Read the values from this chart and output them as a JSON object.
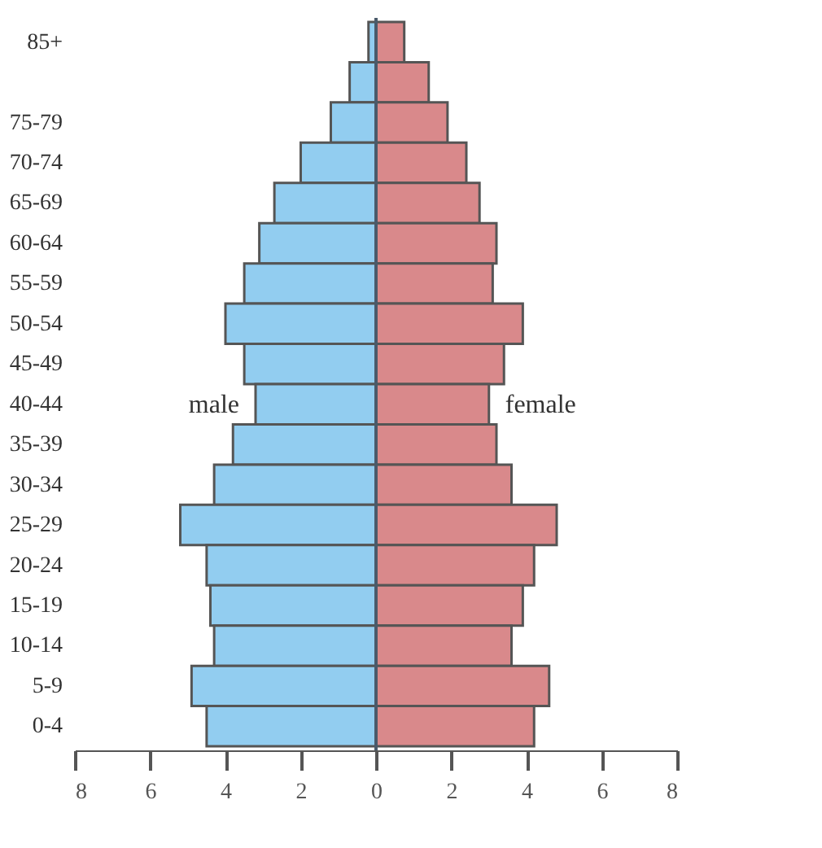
{
  "chart_data": {
    "type": "bar",
    "orientation": "horizontal",
    "categories": [
      "85+",
      null,
      "75-79",
      "70-74",
      "65-69",
      "60-64",
      "55-59",
      "50-54",
      "45-49",
      "40-44",
      "35-39",
      "30-34",
      "25-29",
      "20-24",
      "15-19",
      "10-14",
      "5-9",
      "0-4"
    ],
    "series": [
      {
        "name": "male",
        "color": "#92cdf0",
        "values": [
          -0.2,
          -0.7,
          -1.2,
          -2.0,
          -2.7,
          -3.1,
          -3.5,
          -4.0,
          -3.5,
          -3.2,
          -3.8,
          -4.3,
          -5.2,
          -4.5,
          -4.4,
          -4.3,
          -4.9,
          -4.5
        ]
      },
      {
        "name": "female",
        "color": "#d9898b",
        "values": [
          0.75,
          1.4,
          1.9,
          2.4,
          2.75,
          3.2,
          3.1,
          3.9,
          3.4,
          3.0,
          3.2,
          3.6,
          4.8,
          4.2,
          3.9,
          3.6,
          4.6,
          4.2
        ]
      }
    ],
    "xlim": [
      -8,
      8
    ],
    "xticks": [
      {
        "value": -8,
        "label": "8"
      },
      {
        "value": -6,
        "label": "6"
      },
      {
        "value": -4,
        "label": "4"
      },
      {
        "value": -2,
        "label": "2"
      },
      0,
      2,
      4,
      6,
      8
    ],
    "ref_lines": [
      {
        "axis": "x",
        "value": 0,
        "color": "#4a5a6a"
      }
    ],
    "stacked": true,
    "grid": false,
    "legend": false
  }
}
